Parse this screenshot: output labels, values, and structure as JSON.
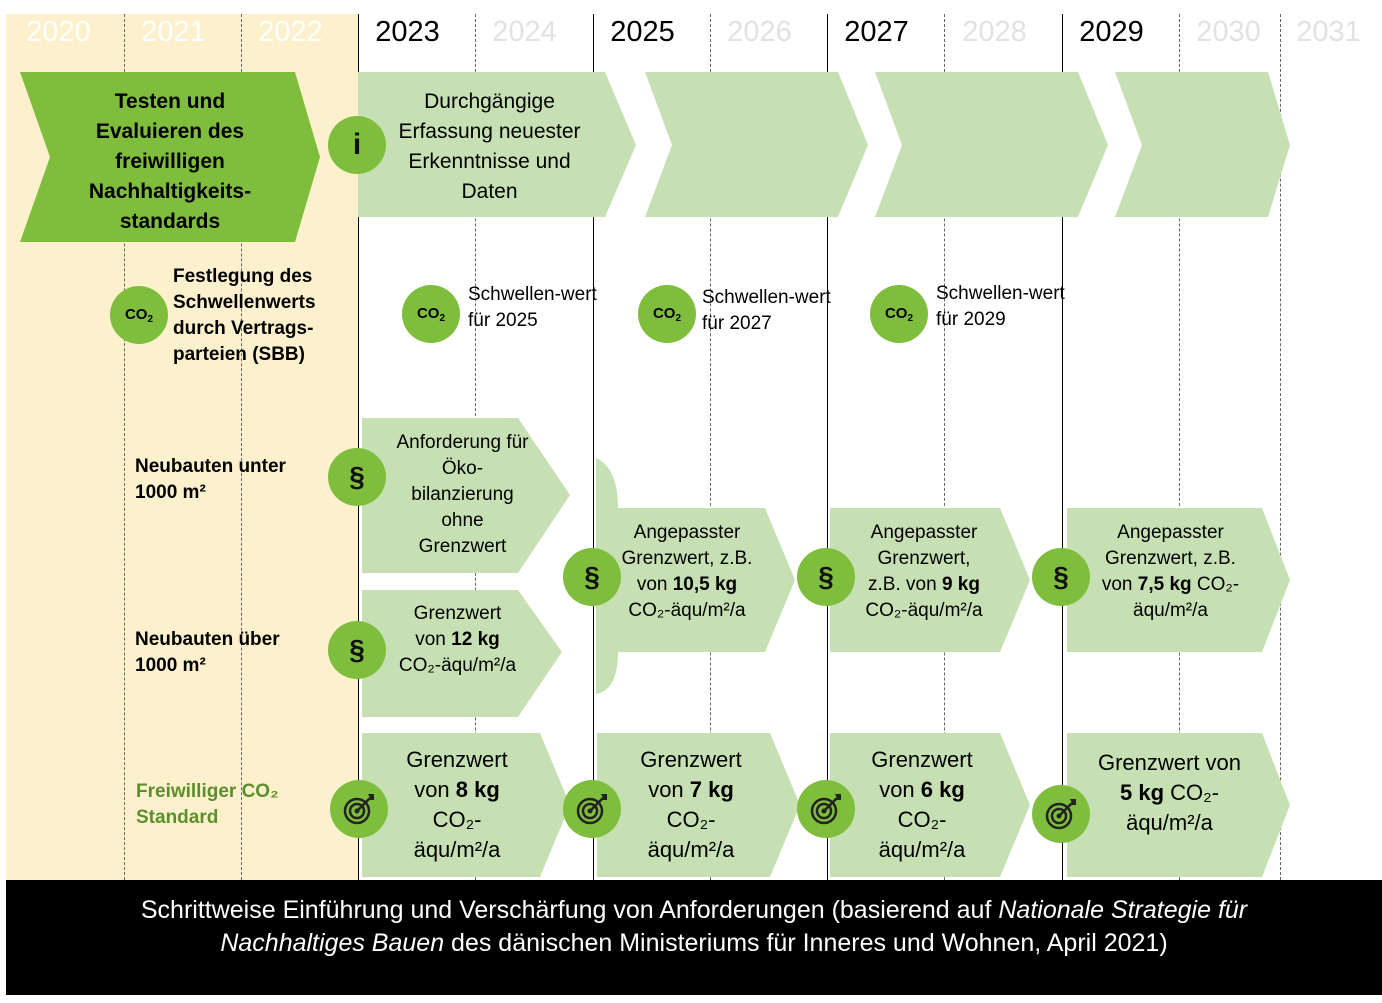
{
  "years": [
    "2020",
    "2021",
    "2022",
    "2023",
    "2024",
    "2025",
    "2026",
    "2027",
    "2028",
    "2029",
    "2030",
    "2031"
  ],
  "row_labels": {
    "festlegung": "Festlegung des Schwellenwerts durch Vertrags-parteien (SBB)",
    "neubauten_unter": "Neubauten unter 1000 m²",
    "neubauten_ueber": "Neubauten über 1000 m²",
    "freiwillig": "Freiwilliger CO₂ Standard"
  },
  "icons": {
    "info": "i",
    "paragraph": "§",
    "co2_main": "CO",
    "co2_sub": "2"
  },
  "phase1": {
    "text": "Testen und Evaluieren des freiwilligen Nachhaltigkeits-standards"
  },
  "info_row": {
    "text": "Durchgängige Erfassung neuester Erkenntnisse und Daten"
  },
  "thresholds": [
    {
      "text": "Schwellen-wert für 2025"
    },
    {
      "text": "Schwellen-wert für 2027"
    },
    {
      "text": "Schwellen-wert für 2029"
    }
  ],
  "small_buildings": {
    "text": "Anforderung für Öko-bilanzierung ohne Grenzwert"
  },
  "large_buildings": {
    "line1": "Grenzwert",
    "pre": "von ",
    "value": "12 kg",
    "unit": "CO₂-äqu/m²/a"
  },
  "adjusted": [
    {
      "l1": "Angepasster",
      "l2": "Grenzwert, z.B.",
      "pre": "von ",
      "value": "10,5 kg",
      "post": "",
      "unit": "CO₂-äqu/m²/a"
    },
    {
      "l1": "Angepasster",
      "l2": "Grenzwert,",
      "pre": "z.B. von ",
      "value": "9 kg",
      "post": "",
      "unit": "CO₂-äqu/m²/a"
    },
    {
      "l1": "Angepasster",
      "l2": "Grenzwert, z.B.",
      "pre": "von ",
      "value": "7,5 kg",
      "post": " CO₂-",
      "unit": "äqu/m²/a"
    }
  ],
  "voluntary": [
    {
      "l1": "Grenzwert",
      "pre": "von ",
      "value": "8 kg",
      "post": "",
      "l3": "CO₂-",
      "l4": "äqu/m²/a"
    },
    {
      "l1": "Grenzwert",
      "pre": "von ",
      "value": "7 kg",
      "post": "",
      "l3": "CO₂-",
      "l4": "äqu/m²/a"
    },
    {
      "l1": "Grenzwert",
      "pre": "von ",
      "value": "6 kg",
      "post": "",
      "l3": "CO₂-",
      "l4": "äqu/m²/a"
    },
    {
      "l1": "Grenzwert von",
      "pre": "",
      "value": "5 kg",
      "post": " CO₂-",
      "l3": "äqu/m²/a",
      "l4": ""
    }
  ],
  "footer": {
    "pre": "Schrittweise Einführung und Verschärfung von Anforderungen (basierend auf ",
    "italic1": "Nationale Strategie für",
    "italic2": "Nachhaltiges Bauen",
    "post": " des dänischen Ministeriums für Inneres und Wohnen, April 2021)"
  },
  "colors": {
    "dark_green": "#7fbd3d",
    "light_green": "#c6e0b4",
    "yellow_bg": "#fdf1cd",
    "footer_bg": "#000000",
    "label_green": "#5b8f2b"
  }
}
